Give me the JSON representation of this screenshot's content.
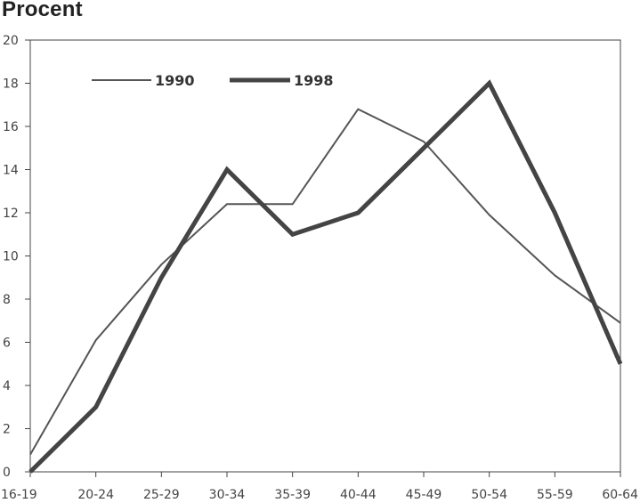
{
  "chart_data": {
    "type": "line",
    "ylabel": "Procent",
    "xlabel": "",
    "title": "",
    "categories": [
      "16-19",
      "20-24",
      "25-29",
      "30-34",
      "35-39",
      "40-44",
      "45-49",
      "50-54",
      "55-59",
      "60-64"
    ],
    "ylim": [
      0,
      20
    ],
    "yticks": [
      0,
      2,
      4,
      6,
      8,
      10,
      12,
      14,
      16,
      18,
      20
    ],
    "series": [
      {
        "name": "1990",
        "values": [
          0.8,
          6.1,
          9.6,
          12.4,
          12.4,
          16.8,
          15.3,
          11.9,
          9.1,
          6.9
        ],
        "color": "#555555",
        "width": "thin"
      },
      {
        "name": "1998",
        "values": [
          0.0,
          3.0,
          9.0,
          14.0,
          11.0,
          12.0,
          15.0,
          18.0,
          12.0,
          5.0
        ],
        "color": "#444444",
        "width": "thick"
      }
    ],
    "legend_position": "top-left",
    "grid": false
  }
}
